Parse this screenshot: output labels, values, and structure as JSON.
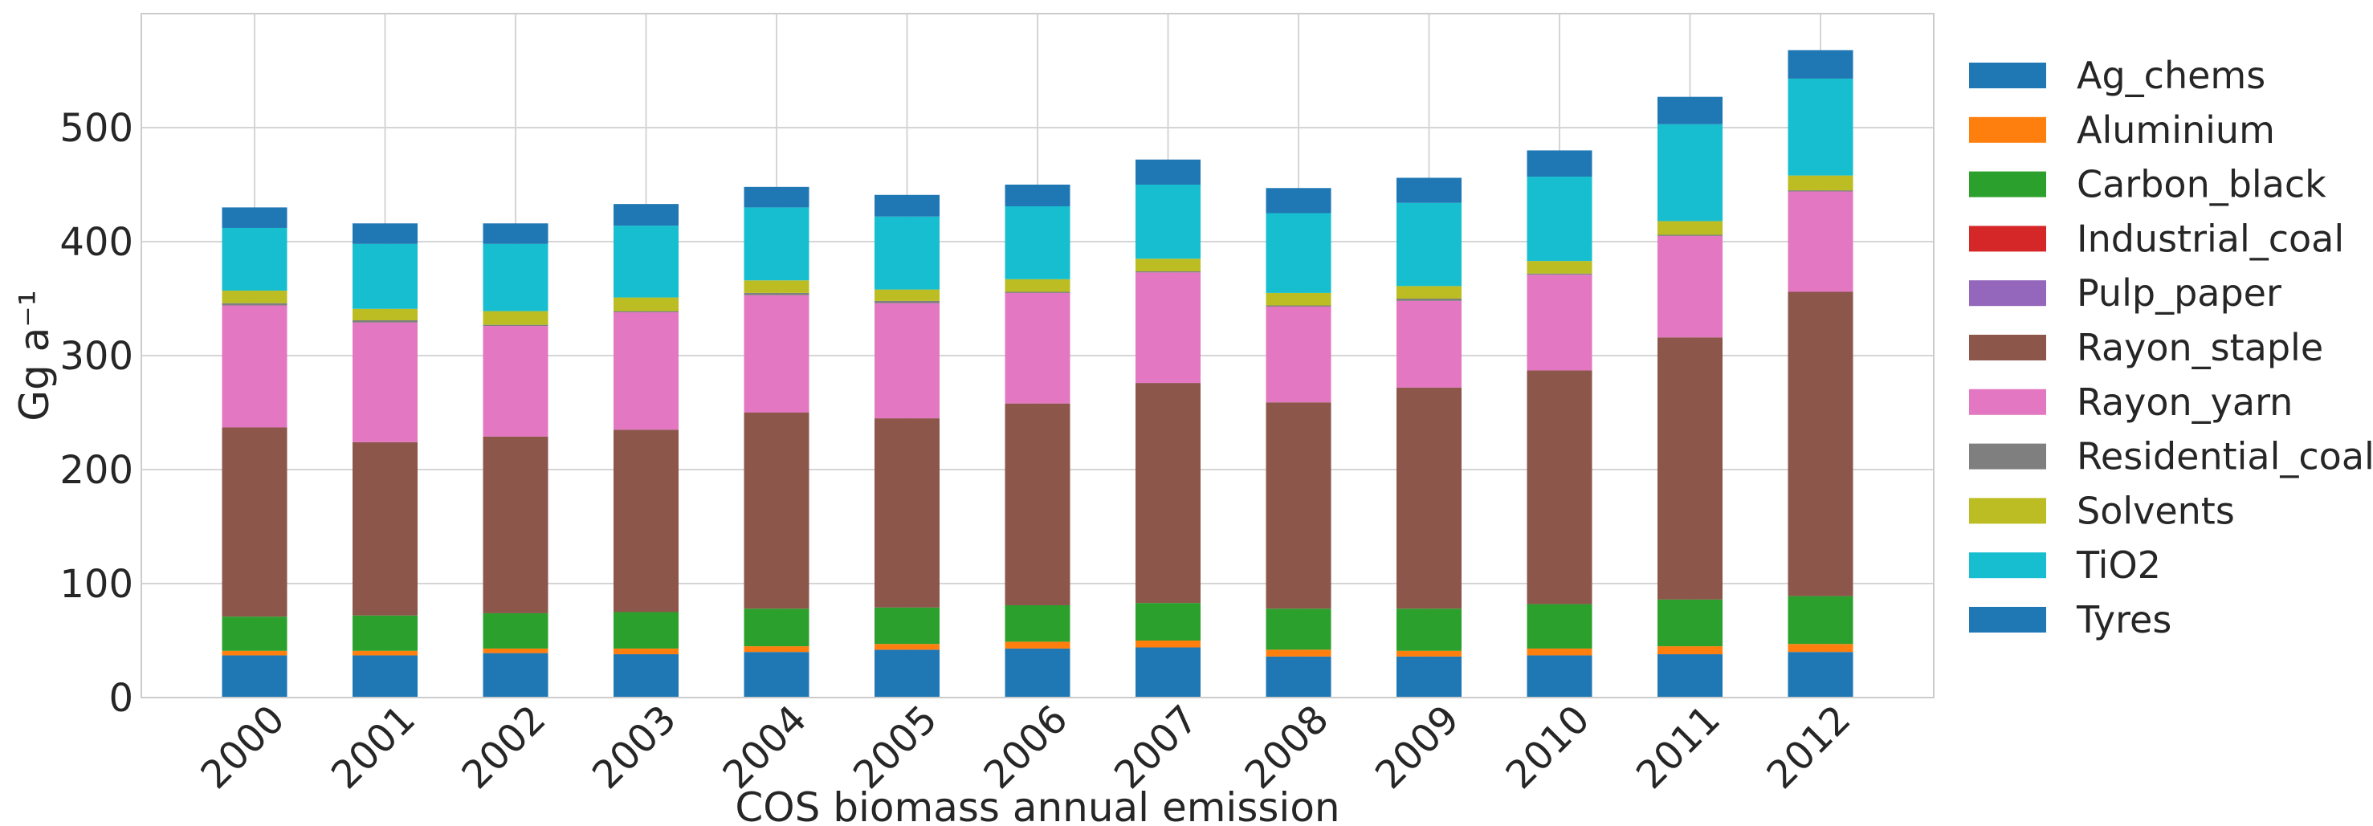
{
  "chart_data": {
    "type": "bar",
    "stacked": true,
    "title": "",
    "xlabel": "COS biomass annual emission",
    "ylabel": "Gg a⁻¹",
    "ylim": [
      0,
      600
    ],
    "yticks": [
      0,
      100,
      200,
      300,
      400,
      500
    ],
    "grid": true,
    "legend_position": "right",
    "categories": [
      "2000",
      "2001",
      "2002",
      "2003",
      "2004",
      "2005",
      "2006",
      "2007",
      "2008",
      "2009",
      "2010",
      "2011",
      "2012"
    ],
    "series": [
      {
        "name": "Tyres",
        "color": "#1f77b4",
        "values": [
          37,
          37,
          39,
          38,
          40,
          42,
          43,
          44,
          36,
          36,
          37,
          38,
          40
        ]
      },
      {
        "name": "Aluminium",
        "color": "#ff7f0e",
        "values": [
          4,
          4,
          4,
          5,
          5,
          5,
          6,
          6,
          6,
          5,
          6,
          7,
          7
        ]
      },
      {
        "name": "Carbon_black",
        "color": "#2ca02c",
        "values": [
          30,
          31,
          31,
          32,
          33,
          32,
          32,
          33,
          36,
          37,
          39,
          41,
          42
        ]
      },
      {
        "name": "Industrial_coal",
        "color": "#d62728",
        "values": [
          0,
          0,
          0,
          0,
          0,
          0,
          0,
          0,
          0,
          0,
          0,
          0,
          0
        ]
      },
      {
        "name": "Pulp_paper",
        "color": "#9467bd",
        "values": [
          0,
          0,
          0,
          0,
          0,
          0,
          0,
          0,
          0,
          0,
          0,
          0,
          0
        ]
      },
      {
        "name": "Rayon_staple",
        "color": "#8c564b",
        "values": [
          166,
          152,
          155,
          160,
          172,
          166,
          177,
          193,
          181,
          194,
          205,
          230,
          267
        ]
      },
      {
        "name": "Rayon_yarn",
        "color": "#e377c2",
        "values": [
          107,
          105,
          97,
          103,
          103,
          101,
          97,
          97,
          84,
          76,
          84,
          89,
          88
        ]
      },
      {
        "name": "Residential_coal",
        "color": "#7f7f7f",
        "values": [
          2,
          2,
          1,
          1,
          2,
          2,
          1,
          1,
          1,
          2,
          1,
          1,
          1
        ]
      },
      {
        "name": "Solvents",
        "color": "#bcbd22",
        "values": [
          11,
          10,
          12,
          12,
          11,
          10,
          11,
          11,
          11,
          11,
          11,
          12,
          13
        ]
      },
      {
        "name": "TiO2",
        "color": "#17becf",
        "values": [
          55,
          57,
          59,
          63,
          64,
          64,
          64,
          65,
          70,
          73,
          74,
          85,
          85
        ]
      },
      {
        "name": "Ag_chems",
        "color": "#1f77b4",
        "values": [
          18,
          18,
          18,
          19,
          18,
          19,
          19,
          22,
          22,
          22,
          23,
          24,
          25
        ]
      }
    ],
    "legend_order": [
      "Ag_chems",
      "Aluminium",
      "Carbon_black",
      "Industrial_coal",
      "Pulp_paper",
      "Rayon_staple",
      "Rayon_yarn",
      "Residential_coal",
      "Solvents",
      "TiO2",
      "Tyres"
    ]
  }
}
